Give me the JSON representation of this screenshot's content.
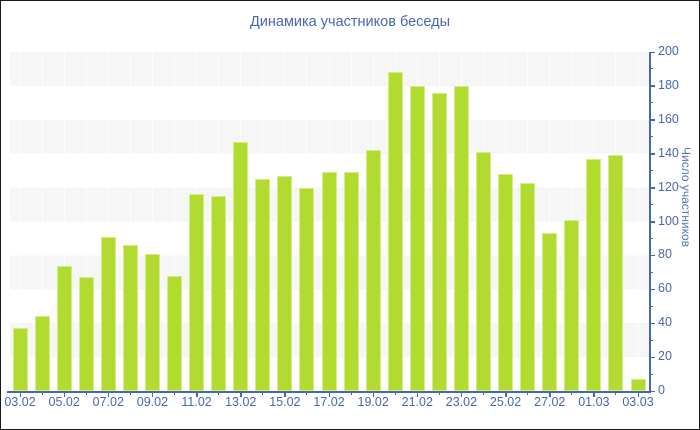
{
  "title": "Динамика участников беседы",
  "colors": {
    "accent_text": "#4a66ad",
    "axis": "#4a66ad",
    "bar_fill": "#b1dc2f",
    "bar_border": "#d6ec88",
    "band_gray": "#f6f6f6",
    "background": "#ffffff"
  },
  "y_axis": {
    "title": "Число участников",
    "min": 0,
    "max": 200,
    "major_step": 20,
    "minor_step": 10,
    "major_tick_labels": [
      "0",
      "20",
      "40",
      "60",
      "80",
      "100",
      "120",
      "140",
      "160",
      "180",
      "200"
    ]
  },
  "x_axis": {
    "tick_labels": [
      "03.02",
      "05.02",
      "07.02",
      "09.02",
      "11.02",
      "13.02",
      "15.02",
      "17.02",
      "19.02",
      "21.02",
      "23.02",
      "25.02",
      "27.02",
      "01.03",
      "03.03"
    ]
  },
  "chart_data": {
    "type": "bar",
    "title": "Динамика участников беседы",
    "categories": [
      "03.02",
      "04.02",
      "05.02",
      "06.02",
      "07.02",
      "08.02",
      "09.02",
      "10.02",
      "11.02",
      "12.02",
      "13.02",
      "14.02",
      "15.02",
      "16.02",
      "17.02",
      "18.02",
      "19.02",
      "20.02",
      "21.02",
      "22.02",
      "23.02",
      "24.02",
      "25.02",
      "26.02",
      "27.02",
      "28.02",
      "01.03",
      "02.03",
      "03.03"
    ],
    "values": [
      37,
      44,
      74,
      67,
      91,
      86,
      81,
      68,
      116,
      115,
      147,
      125,
      127,
      120,
      129,
      129,
      142,
      188,
      180,
      176,
      180,
      141,
      128,
      123,
      93,
      101,
      137,
      139,
      7
    ],
    "xlabel": "",
    "ylabel": "Число участников",
    "ylim": [
      0,
      200
    ],
    "grid": "horizontal-bands-20",
    "legend": "none"
  }
}
